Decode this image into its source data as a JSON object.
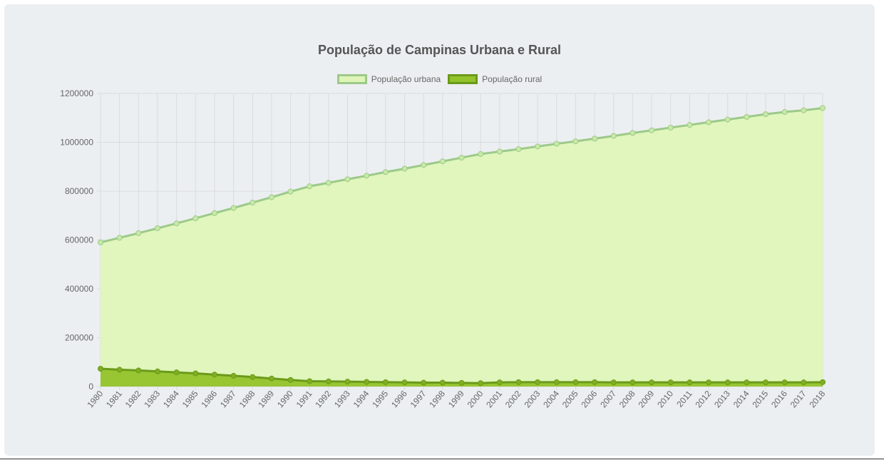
{
  "chart_data": {
    "type": "area",
    "title": "População de Campinas Urbana e Rural",
    "xlabel": "",
    "ylabel": "",
    "ylim": [
      0,
      1200000
    ],
    "yticks": [
      "0",
      "200000",
      "400000",
      "600000",
      "800000",
      "1000000",
      "1200000"
    ],
    "grid": true,
    "legend_position": "top",
    "categories": [
      "1980",
      "1981",
      "1982",
      "1983",
      "1984",
      "1985",
      "1986",
      "1987",
      "1988",
      "1989",
      "1990",
      "1991",
      "1992",
      "1993",
      "1994",
      "1995",
      "1996",
      "1997",
      "1998",
      "1999",
      "2000",
      "2001",
      "2002",
      "2003",
      "2004",
      "2005",
      "2006",
      "2007",
      "2008",
      "2009",
      "2010",
      "2011",
      "2012",
      "2013",
      "2014",
      "2015",
      "2016",
      "2017",
      "2018"
    ],
    "series": [
      {
        "name": "População urbana",
        "fill_color": "#dff5b8",
        "line_color": "#9cc98a",
        "point_color": "#c8eaa6",
        "values": [
          590000,
          609000,
          628000,
          648000,
          668000,
          689000,
          710000,
          731000,
          753000,
          775000,
          798000,
          820000,
          834000,
          849000,
          863000,
          878000,
          892000,
          907000,
          922000,
          937000,
          952000,
          962000,
          972000,
          983000,
          994000,
          1004000,
          1015000,
          1026000,
          1038000,
          1049000,
          1060000,
          1071000,
          1082000,
          1093000,
          1104000,
          1115000,
          1124000,
          1131000,
          1140000
        ]
      },
      {
        "name": "População rural",
        "fill_color": "#93c32b",
        "line_color": "#6a9a1a",
        "point_color": "#7fae22",
        "values": [
          73000,
          69000,
          66000,
          62000,
          58000,
          54000,
          49000,
          44000,
          39000,
          33000,
          27000,
          22000,
          21000,
          20000,
          19000,
          18000,
          17000,
          16000,
          16000,
          15000,
          14000,
          17000,
          18000,
          18000,
          18000,
          18000,
          18000,
          17000,
          17000,
          17000,
          17000,
          17000,
          17000,
          17000,
          17000,
          17000,
          17000,
          17000,
          18000
        ]
      }
    ]
  }
}
